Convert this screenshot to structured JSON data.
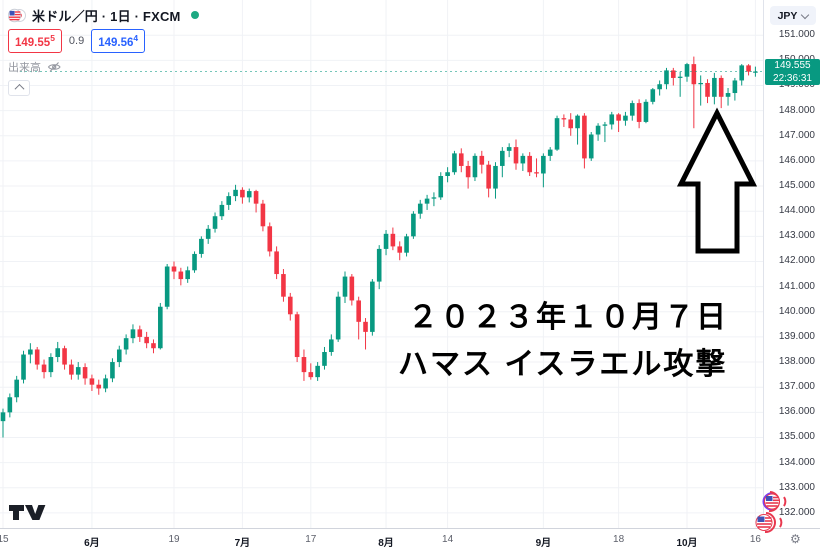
{
  "header": {
    "symbol_title": "米ドル／円 · 1日 · FXCM",
    "bid": "149.555",
    "spread": "0.9",
    "ask": "149.564",
    "volume_label": "出来高"
  },
  "price_scale": {
    "currency_button": "JPY",
    "labels": [
      "151.000",
      "150.000",
      "149.000",
      "148.000",
      "147.000",
      "146.000",
      "145.000",
      "144.000",
      "143.000",
      "142.000",
      "141.000",
      "140.000",
      "139.000",
      "138.000",
      "137.000",
      "136.000",
      "135.000",
      "134.000",
      "133.000",
      "132.000"
    ],
    "last_price": "149.555",
    "countdown": "22:36:31",
    "badge_color": "#089981"
  },
  "annotation": {
    "date_line": "２０２３年１０月７日",
    "event_line": "ハマス イスラエル攻撃"
  },
  "icons": {
    "settings_gear": "⚙",
    "pair_icon": "usd-jpy-pair-icon",
    "volume_hidden": "eye-off-icon",
    "stickers": [
      "us-flag-sticker",
      "us-flag-sticker"
    ]
  },
  "chart_data": {
    "type": "candlestick",
    "symbol": "米ドル／円",
    "interval": "1日",
    "exchange": "FXCM",
    "ylabel": "JPY",
    "ylim": [
      131.4,
      152.4
    ],
    "grid": true,
    "legend_position": "top-left",
    "up_color": "#089981",
    "down_color": "#f23645",
    "price_line_value": 149.555,
    "x_ticks": [
      {
        "index": 0,
        "label": "15",
        "type": "day"
      },
      {
        "index": 13,
        "label": "6月",
        "type": "month"
      },
      {
        "index": 25,
        "label": "19",
        "type": "day"
      },
      {
        "index": 35,
        "label": "7月",
        "type": "month"
      },
      {
        "index": 45,
        "label": "17",
        "type": "day"
      },
      {
        "index": 56,
        "label": "8月",
        "type": "month"
      },
      {
        "index": 65,
        "label": "14",
        "type": "day"
      },
      {
        "index": 79,
        "label": "9月",
        "type": "month"
      },
      {
        "index": 90,
        "label": "18",
        "type": "day"
      },
      {
        "index": 100,
        "label": "10月",
        "type": "month"
      },
      {
        "index": 110,
        "label": "16",
        "type": "day"
      }
    ],
    "ohlc": [
      [
        135.65,
        136.15,
        135.0,
        136.0
      ],
      [
        136.0,
        136.75,
        135.8,
        136.6
      ],
      [
        136.6,
        137.45,
        136.4,
        137.3
      ],
      [
        137.3,
        138.45,
        137.15,
        138.3
      ],
      [
        138.3,
        138.75,
        137.95,
        138.5
      ],
      [
        138.5,
        138.6,
        137.7,
        137.9
      ],
      [
        137.9,
        138.1,
        137.35,
        137.6
      ],
      [
        137.6,
        138.35,
        137.4,
        138.2
      ],
      [
        138.2,
        138.8,
        138.0,
        138.55
      ],
      [
        138.55,
        138.65,
        137.7,
        137.9
      ],
      [
        137.9,
        138.1,
        137.3,
        137.5
      ],
      [
        137.5,
        138.0,
        137.3,
        137.8
      ],
      [
        137.8,
        137.95,
        137.1,
        137.35
      ],
      [
        137.35,
        137.5,
        136.85,
        137.1
      ],
      [
        137.1,
        137.3,
        136.7,
        136.95
      ],
      [
        136.95,
        137.5,
        136.8,
        137.35
      ],
      [
        137.35,
        138.15,
        137.2,
        138.0
      ],
      [
        138.0,
        138.65,
        137.8,
        138.5
      ],
      [
        138.5,
        139.1,
        138.3,
        138.95
      ],
      [
        138.95,
        139.5,
        138.75,
        139.3
      ],
      [
        139.3,
        139.45,
        138.8,
        139.0
      ],
      [
        139.0,
        139.2,
        138.55,
        138.75
      ],
      [
        138.75,
        138.9,
        138.35,
        138.55
      ],
      [
        138.55,
        140.35,
        138.5,
        140.2
      ],
      [
        140.2,
        141.9,
        140.1,
        141.8
      ],
      [
        141.8,
        142.0,
        141.3,
        141.6
      ],
      [
        141.6,
        141.75,
        141.05,
        141.3
      ],
      [
        141.3,
        141.8,
        141.15,
        141.65
      ],
      [
        141.65,
        142.4,
        141.55,
        142.3
      ],
      [
        142.3,
        143.0,
        142.15,
        142.9
      ],
      [
        142.9,
        143.45,
        142.7,
        143.3
      ],
      [
        143.3,
        143.95,
        143.15,
        143.8
      ],
      [
        143.8,
        144.4,
        143.65,
        144.25
      ],
      [
        144.25,
        144.75,
        144.05,
        144.6
      ],
      [
        144.6,
        145.05,
        144.4,
        144.85
      ],
      [
        144.85,
        144.95,
        144.3,
        144.55
      ],
      [
        144.55,
        144.9,
        144.35,
        144.8
      ],
      [
        144.8,
        144.85,
        143.95,
        144.3
      ],
      [
        144.3,
        144.45,
        143.2,
        143.4
      ],
      [
        143.4,
        143.55,
        142.2,
        142.4
      ],
      [
        142.4,
        142.6,
        141.3,
        141.5
      ],
      [
        141.5,
        141.7,
        140.4,
        140.6
      ],
      [
        140.6,
        140.75,
        139.65,
        139.9
      ],
      [
        139.9,
        140.0,
        138.0,
        138.2
      ],
      [
        138.2,
        138.5,
        137.25,
        137.6
      ],
      [
        137.6,
        137.95,
        137.3,
        137.4
      ],
      [
        137.4,
        138.0,
        137.25,
        137.85
      ],
      [
        137.85,
        138.6,
        137.7,
        138.4
      ],
      [
        138.4,
        139.1,
        138.25,
        138.9
      ],
      [
        138.9,
        140.8,
        138.8,
        140.6
      ],
      [
        140.6,
        141.6,
        140.35,
        141.4
      ],
      [
        141.4,
        141.5,
        140.25,
        140.45
      ],
      [
        140.45,
        140.6,
        138.9,
        139.6
      ],
      [
        139.6,
        139.75,
        138.5,
        139.2
      ],
      [
        139.2,
        141.3,
        139.05,
        141.2
      ],
      [
        141.2,
        142.65,
        140.9,
        142.5
      ],
      [
        142.5,
        143.25,
        142.25,
        143.1
      ],
      [
        143.1,
        143.35,
        142.45,
        142.6
      ],
      [
        142.6,
        142.8,
        142.05,
        142.35
      ],
      [
        142.35,
        143.1,
        142.2,
        143.0
      ],
      [
        143.0,
        144.0,
        142.9,
        143.9
      ],
      [
        143.9,
        144.45,
        143.7,
        144.3
      ],
      [
        144.3,
        144.65,
        144.05,
        144.5
      ],
      [
        144.5,
        144.75,
        144.2,
        144.55
      ],
      [
        144.55,
        145.55,
        144.45,
        145.4
      ],
      [
        145.4,
        145.75,
        145.15,
        145.55
      ],
      [
        145.55,
        146.4,
        145.45,
        146.3
      ],
      [
        146.3,
        146.5,
        145.55,
        145.8
      ],
      [
        145.8,
        146.0,
        144.9,
        145.35
      ],
      [
        145.35,
        146.3,
        145.2,
        146.2
      ],
      [
        146.2,
        146.4,
        145.5,
        145.85
      ],
      [
        145.85,
        146.0,
        144.55,
        144.9
      ],
      [
        144.9,
        145.95,
        144.5,
        145.8
      ],
      [
        145.8,
        146.55,
        145.35,
        146.4
      ],
      [
        146.4,
        146.7,
        146.15,
        146.55
      ],
      [
        146.55,
        146.85,
        145.65,
        145.9
      ],
      [
        145.9,
        146.3,
        145.6,
        146.2
      ],
      [
        146.2,
        146.35,
        145.4,
        145.55
      ],
      [
        145.55,
        146.1,
        145.35,
        145.5
      ],
      [
        145.5,
        146.3,
        144.95,
        146.2
      ],
      [
        146.2,
        146.55,
        146.0,
        146.45
      ],
      [
        146.45,
        147.8,
        146.4,
        147.7
      ],
      [
        147.7,
        147.85,
        147.35,
        147.65
      ],
      [
        147.65,
        147.9,
        147.0,
        147.3
      ],
      [
        147.3,
        147.85,
        146.65,
        147.8
      ],
      [
        147.8,
        147.9,
        145.7,
        146.1
      ],
      [
        146.1,
        147.15,
        146.0,
        147.05
      ],
      [
        147.05,
        147.5,
        146.8,
        147.4
      ],
      [
        147.4,
        147.55,
        146.75,
        147.45
      ],
      [
        147.45,
        147.95,
        147.25,
        147.85
      ],
      [
        147.85,
        147.9,
        147.15,
        147.6
      ],
      [
        147.6,
        147.95,
        147.4,
        147.8
      ],
      [
        147.8,
        148.4,
        147.6,
        148.3
      ],
      [
        148.3,
        148.45,
        147.3,
        147.55
      ],
      [
        147.55,
        148.45,
        147.5,
        148.35
      ],
      [
        148.35,
        148.9,
        148.25,
        148.85
      ],
      [
        148.85,
        149.2,
        148.6,
        149.05
      ],
      [
        149.05,
        149.7,
        148.85,
        149.6
      ],
      [
        149.6,
        149.7,
        149.0,
        149.3
      ],
      [
        149.3,
        149.55,
        148.55,
        149.35
      ],
      [
        149.35,
        149.9,
        149.15,
        149.85
      ],
      [
        149.85,
        150.15,
        147.3,
        149.05
      ],
      [
        149.05,
        149.4,
        148.2,
        149.1
      ],
      [
        149.1,
        149.25,
        148.3,
        148.55
      ],
      [
        148.55,
        149.5,
        148.25,
        149.3
      ],
      [
        149.3,
        149.4,
        148.1,
        148.55
      ],
      [
        148.55,
        148.9,
        148.2,
        148.7
      ],
      [
        148.7,
        149.3,
        148.4,
        149.2
      ],
      [
        149.2,
        149.85,
        149.0,
        149.8
      ],
      [
        149.8,
        149.85,
        149.4,
        149.55
      ],
      [
        149.55,
        149.75,
        149.35,
        149.555
      ]
    ]
  }
}
